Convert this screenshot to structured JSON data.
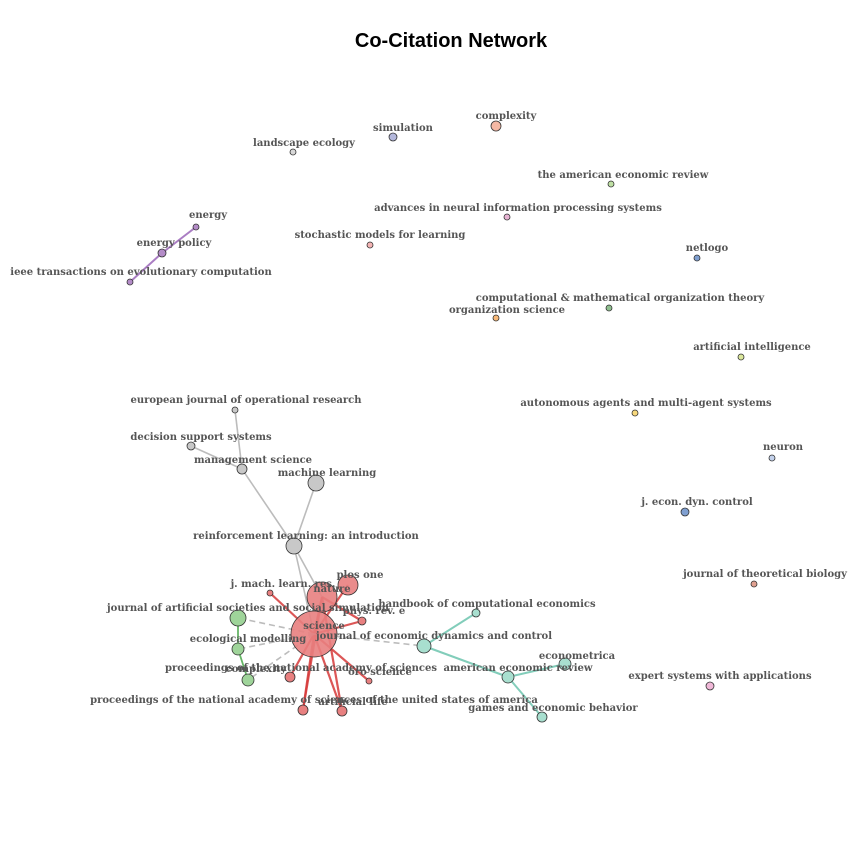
{
  "title": "Co-Citation Network",
  "palette": {
    "red": "#e88080",
    "darkred": "#d93030",
    "gray": "#c8c8c8",
    "green": "#9fd49a",
    "teal": "#a8dfcf",
    "purple": "#b48cc8",
    "edge_gray": "#b0b0b0",
    "edge_red": "#d63a3a",
    "edge_green": "#4aa84a",
    "edge_teal": "#6cc4ae",
    "edge_purple": "#9b66b8"
  },
  "nodes": [
    {
      "id": "complexity",
      "label": "complexity",
      "color": "#f5b8a4"
    },
    {
      "id": "simulation",
      "label": "simulation",
      "color": "#b4b8dc"
    },
    {
      "id": "landscape-ecology",
      "label": "landscape ecology",
      "color": "#d8d8d8"
    },
    {
      "id": "american-economic-review-title",
      "label": "the american economic review",
      "color": "#bfe0a4"
    },
    {
      "id": "advances-nips",
      "label": "advances in neural information processing systems",
      "color": "#e8b4d4"
    },
    {
      "id": "energy",
      "label": "energy",
      "color": "#b48cc8"
    },
    {
      "id": "energy-policy",
      "label": "energy policy",
      "color": "#b48cc8"
    },
    {
      "id": "ieee-tec",
      "label": "ieee transactions on evolutionary computation",
      "color": "#b48cc8"
    },
    {
      "id": "stochastic-models",
      "label": "stochastic models for learning",
      "color": "#f4b4b4"
    },
    {
      "id": "netlogo",
      "label": "netlogo",
      "color": "#7f9fd0"
    },
    {
      "id": "cmot",
      "label": "computational & mathematical organization theory",
      "color": "#8fbf8f"
    },
    {
      "id": "organization-science",
      "label": "organization science",
      "color": "#f7b878"
    },
    {
      "id": "artificial-intelligence",
      "label": "artificial intelligence",
      "color": "#dbe79c"
    },
    {
      "id": "ejor",
      "label": "european journal of operational research",
      "color": "#c8c8c8"
    },
    {
      "id": "autonomous-agents",
      "label": "autonomous agents and multi-agent systems",
      "color": "#f7d87c"
    },
    {
      "id": "decision-support",
      "label": "decision support systems",
      "color": "#c8c8c8"
    },
    {
      "id": "neuron",
      "label": "neuron",
      "color": "#c4d2ec"
    },
    {
      "id": "management-science",
      "label": "management science",
      "color": "#c8c8c8"
    },
    {
      "id": "machine-learning",
      "label": "machine learning",
      "color": "#c8c8c8"
    },
    {
      "id": "j-econ-dyn-control",
      "label": "j. econ. dyn. control",
      "color": "#7f9fd0"
    },
    {
      "id": "reinforcement-learning",
      "label": "reinforcement learning: an introduction",
      "color": "#c8c8c8"
    },
    {
      "id": "journal-theoretical-biology",
      "label": "journal of theoretical biology",
      "color": "#e0a090"
    },
    {
      "id": "plos-one",
      "label": "plos one",
      "color": "#e88080"
    },
    {
      "id": "j-mach-learn-res",
      "label": "j. mach. learn. res.",
      "color": "#e88080"
    },
    {
      "id": "nature",
      "label": "nature",
      "color": "#e88080"
    },
    {
      "id": "jasss",
      "label": "journal of artificial societies and social simulation",
      "color": "#9fd49a"
    },
    {
      "id": "phys-rev-e",
      "label": "phys. rev. e",
      "color": "#e88080"
    },
    {
      "id": "handbook-comp-econ",
      "label": "handbook of computational economics",
      "color": "#a8dfcf"
    },
    {
      "id": "science",
      "label": "science",
      "color": "#e88080"
    },
    {
      "id": "ecological-modelling",
      "label": "ecological modelling",
      "color": "#9fd49a"
    },
    {
      "id": "jedc",
      "label": "journal of economic dynamics and control",
      "color": "#a8dfcf"
    },
    {
      "id": "econometrica",
      "label": "econometrica",
      "color": "#a8dfcf"
    },
    {
      "id": "pnas-short",
      "label": "proceedings of the national academy of sciences",
      "color": "#e88080"
    },
    {
      "id": "complexity-green",
      "label": "complexity",
      "color": "#9fd49a"
    },
    {
      "id": "american-economic-review",
      "label": "american economic review",
      "color": "#a8dfcf"
    },
    {
      "id": "expert-systems",
      "label": "expert systems with applications",
      "color": "#f0b8d8"
    },
    {
      "id": "pnas-long",
      "label": "proceedings of the national academy of sciences of the united states of america",
      "color": "#e88080"
    },
    {
      "id": "artificial-life",
      "label": "artificial life",
      "color": "#e88080"
    },
    {
      "id": "oro-science",
      "label": "oro science",
      "color": "#e88080"
    },
    {
      "id": "games-economic-behavior",
      "label": "games and economic behavior",
      "color": "#a8dfcf"
    }
  ],
  "edges": [
    {
      "from": "energy",
      "to": "energy-policy",
      "kind": "purple"
    },
    {
      "from": "energy-policy",
      "to": "ieee-tec",
      "kind": "purple"
    },
    {
      "from": "ejor",
      "to": "management-science",
      "kind": "gray"
    },
    {
      "from": "decision-support",
      "to": "management-science",
      "kind": "gray"
    },
    {
      "from": "management-science",
      "to": "reinforcement-learning",
      "kind": "gray"
    },
    {
      "from": "machine-learning",
      "to": "reinforcement-learning",
      "kind": "gray"
    },
    {
      "from": "reinforcement-learning",
      "to": "science",
      "kind": "gray"
    },
    {
      "from": "reinforcement-learning",
      "to": "nature",
      "kind": "gray"
    },
    {
      "from": "science",
      "to": "nature",
      "kind": "red"
    },
    {
      "from": "science",
      "to": "plos-one",
      "kind": "red"
    },
    {
      "from": "science",
      "to": "j-mach-learn-res",
      "kind": "red"
    },
    {
      "from": "science",
      "to": "phys-rev-e",
      "kind": "red"
    },
    {
      "from": "science",
      "to": "pnas-short",
      "kind": "red"
    },
    {
      "from": "science",
      "to": "pnas-long",
      "kind": "red"
    },
    {
      "from": "science",
      "to": "artificial-life",
      "kind": "red"
    },
    {
      "from": "science",
      "to": "oro-science",
      "kind": "red"
    },
    {
      "from": "nature",
      "to": "phys-rev-e",
      "kind": "red"
    },
    {
      "from": "nature",
      "to": "pnas-long",
      "kind": "red"
    },
    {
      "from": "nature",
      "to": "artificial-life",
      "kind": "red"
    },
    {
      "from": "science",
      "to": "jasss",
      "kind": "gray"
    },
    {
      "from": "science",
      "to": "ecological-modelling",
      "kind": "gray"
    },
    {
      "from": "science",
      "to": "complexity-green",
      "kind": "gray"
    },
    {
      "from": "jasss",
      "to": "ecological-modelling",
      "kind": "green"
    },
    {
      "from": "ecological-modelling",
      "to": "complexity-green",
      "kind": "green"
    },
    {
      "from": "science",
      "to": "jedc",
      "kind": "gray"
    },
    {
      "from": "jedc",
      "to": "handbook-comp-econ",
      "kind": "teal"
    },
    {
      "from": "jedc",
      "to": "american-economic-review",
      "kind": "teal"
    },
    {
      "from": "american-economic-review",
      "to": "econometrica",
      "kind": "teal"
    },
    {
      "from": "american-economic-review",
      "to": "games-economic-behavior",
      "kind": "teal"
    }
  ]
}
